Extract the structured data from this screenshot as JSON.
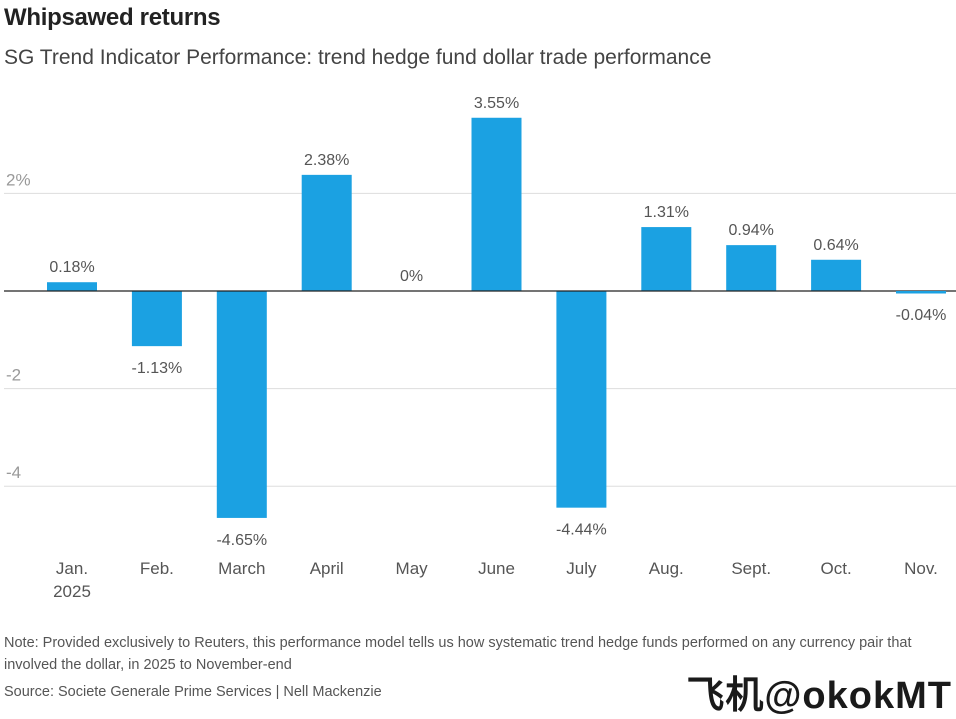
{
  "header": {
    "title": "Whipsawed returns",
    "subtitle": "SG Trend Indicator Performance: trend hedge fund dollar trade performance"
  },
  "footer": {
    "note": "Note: Provided exclusively to Reuters, this performance model tells us how systematic trend hedge funds performed on any currency pair that involved the dollar, in 2025 to November-end",
    "source": "Source: Societe Generale Prime Services | Nell Mackenzie",
    "watermark": "飞机@okokMT"
  },
  "colors": {
    "bar": "#1ba1e2",
    "grid": "#dddddd",
    "zero": "#222222"
  },
  "chart_data": {
    "type": "bar",
    "title": "Whipsawed returns",
    "subtitle": "SG Trend Indicator Performance: trend hedge fund dollar trade performance",
    "xlabel": "",
    "ylabel": "",
    "categories": [
      [
        "Jan.",
        "2025"
      ],
      [
        "Feb."
      ],
      [
        "March"
      ],
      [
        "April"
      ],
      [
        "May"
      ],
      [
        "June"
      ],
      [
        "July"
      ],
      [
        "Aug."
      ],
      [
        "Sept."
      ],
      [
        "Oct."
      ],
      [
        "Nov."
      ]
    ],
    "values": [
      0.18,
      -1.13,
      -4.65,
      2.38,
      0,
      3.55,
      -4.44,
      1.31,
      0.94,
      0.64,
      -0.04
    ],
    "data_labels": [
      "0.18%",
      "-1.13%",
      "-4.65%",
      "2.38%",
      "0%",
      "3.55%",
      "-4.44%",
      "1.31%",
      "0.94%",
      "0.64%",
      "-0.04%"
    ],
    "yticks": [
      {
        "value": 2,
        "label": "2%"
      },
      {
        "value": -2,
        "label": "-2"
      },
      {
        "value": -4,
        "label": "-4"
      }
    ],
    "ylim": [
      -5.4,
      4.0
    ],
    "grid": true
  }
}
